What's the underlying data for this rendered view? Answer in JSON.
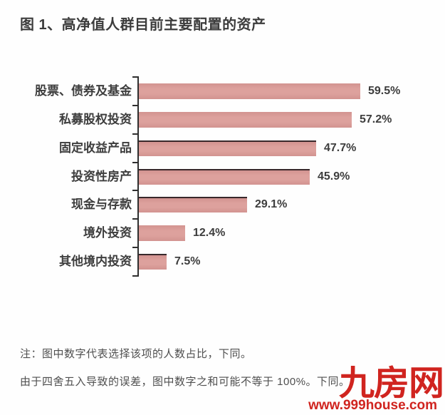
{
  "title": "图 1、高净值人群目前主要配置的资产",
  "chart_data": {
    "type": "bar",
    "orientation": "horizontal",
    "title": "图 1、高净值人群目前主要配置的资产",
    "categories": [
      "股票、债券及基金",
      "私募股权投资",
      "固定收益产品",
      "投资性房产",
      "现金与存款",
      "境外投资",
      "其他境内投资"
    ],
    "values": [
      59.5,
      57.2,
      47.7,
      45.9,
      29.1,
      12.4,
      7.5
    ],
    "value_labels": [
      "59.5%",
      "57.2%",
      "47.7%",
      "45.9%",
      "29.1%",
      "12.4%",
      "7.5%"
    ],
    "unit": "%",
    "xlim": [
      0,
      100
    ],
    "grid": false,
    "legend": "none",
    "bar_color": "#dda19d",
    "bar_top_border_color": "#38282b",
    "bars_with_top_border": [
      2,
      3,
      4,
      6
    ],
    "axis_color": "#2f2f2f",
    "label_color": "#3d3d3d"
  },
  "notes": {
    "line1": "注：图中数字代表选择该项的人数占比，下同。",
    "line2": "由于四舍五入导致的误差，图中数字之和可能不等于 100%。下同。"
  },
  "brand": {
    "logo": "九房网",
    "url": "www.999house.com",
    "color": "#d0241f"
  }
}
